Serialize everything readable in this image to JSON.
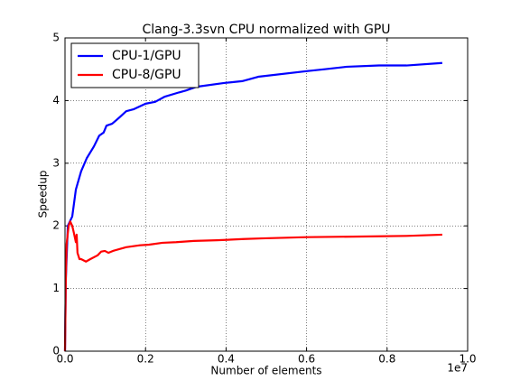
{
  "chart_data": {
    "type": "line",
    "title": "Clang-3.3svn CPU normalized with GPU",
    "xlabel": "Number of elements",
    "ylabel": "Speedup",
    "x_offset_label": "1e7",
    "xlim": [
      0,
      1
    ],
    "ylim": [
      0,
      5
    ],
    "xticks": [
      {
        "value": 0,
        "label": "0.0"
      },
      0.2,
      0.4,
      0.6,
      0.8,
      {
        "value": 1,
        "label": "1.0"
      }
    ],
    "yticks": [
      0,
      1,
      2,
      3,
      4,
      5
    ],
    "grid": true,
    "legend": "upper left",
    "series": [
      {
        "name": "CPU-1/GPU",
        "color": "#0000ff",
        "x": [
          0,
          0.002,
          0.007,
          0.018,
          0.027,
          0.04,
          0.054,
          0.072,
          0.085,
          0.096,
          0.103,
          0.117,
          0.135,
          0.152,
          0.17,
          0.2,
          0.224,
          0.247,
          0.283,
          0.3,
          0.327,
          0.395,
          0.44,
          0.48,
          0.6,
          0.645,
          0.7,
          0.78,
          0.848,
          0.937
        ],
        "values": [
          0,
          1.14,
          2.0,
          2.15,
          2.58,
          2.87,
          3.08,
          3.27,
          3.44,
          3.49,
          3.6,
          3.63,
          3.73,
          3.83,
          3.86,
          3.95,
          3.98,
          4.06,
          4.13,
          4.16,
          4.22,
          4.28,
          4.31,
          4.38,
          4.47,
          4.5,
          4.54,
          4.56,
          4.56,
          4.6
        ]
      },
      {
        "name": "CPU-8/GPU",
        "color": "#ff0000",
        "x": [
          0,
          0.002,
          0.004,
          0.009,
          0.013,
          0.018,
          0.022,
          0.027,
          0.029,
          0.031,
          0.036,
          0.04,
          0.052,
          0.063,
          0.081,
          0.09,
          0.099,
          0.108,
          0.119,
          0.152,
          0.186,
          0.209,
          0.242,
          0.276,
          0.32,
          0.377,
          0.444,
          0.489,
          0.6,
          0.735,
          0.848,
          0.937
        ],
        "values": [
          0,
          1.14,
          1.71,
          2.0,
          2.07,
          2.0,
          1.89,
          1.74,
          1.86,
          1.57,
          1.47,
          1.47,
          1.43,
          1.47,
          1.53,
          1.59,
          1.6,
          1.57,
          1.6,
          1.66,
          1.69,
          1.7,
          1.73,
          1.74,
          1.76,
          1.77,
          1.79,
          1.8,
          1.82,
          1.83,
          1.84,
          1.86
        ]
      }
    ]
  }
}
